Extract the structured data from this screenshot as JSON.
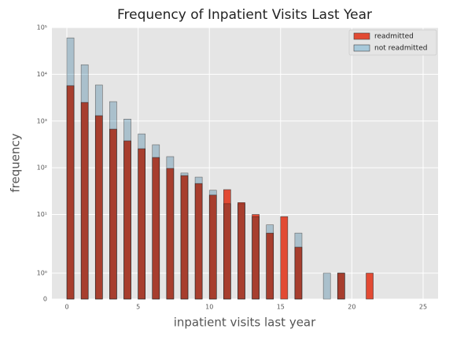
{
  "chart_data": {
    "type": "histogram",
    "title": "Frequency of Inpatient Visits Last Year",
    "x_label": "inpatient visits last year",
    "y_label": "frequency",
    "bins": [
      0,
      0.5,
      1,
      1.5,
      2,
      2.5,
      3,
      3.5,
      4,
      4.5,
      5,
      5.5,
      6,
      6.5,
      7,
      7.5,
      8,
      8.5,
      9,
      9.5,
      10,
      10.5,
      11,
      11.5,
      12,
      12.5,
      13,
      13.5,
      14,
      14.5,
      15,
      15.5,
      16,
      16.5,
      17,
      17.5,
      18,
      18.5,
      19,
      19.5,
      20,
      20.5,
      21,
      21.5
    ],
    "series": [
      {
        "name": "readmitted",
        "color": "#E24A33",
        "values": [
          5700,
          0,
          2500,
          0,
          1300,
          0,
          670,
          0,
          376,
          0,
          255,
          0,
          166,
          0,
          97,
          0,
          68,
          0,
          46,
          0,
          26,
          0,
          34,
          0,
          18,
          0,
          10,
          0,
          4,
          0,
          9,
          0,
          2,
          0,
          0,
          0,
          0,
          0,
          1,
          0,
          0,
          0,
          1
        ]
      },
      {
        "name": "not readmitted",
        "color": "#a7c9da",
        "values": [
          60000,
          0,
          16000,
          0,
          5900,
          0,
          2600,
          0,
          1100,
          0,
          530,
          0,
          310,
          0,
          173,
          0,
          77,
          0,
          63,
          0,
          33,
          0,
          17,
          0,
          17,
          0,
          9,
          0,
          6,
          0,
          0,
          0,
          4,
          0,
          0,
          0,
          1,
          0,
          1,
          0,
          0,
          0,
          0
        ]
      }
    ],
    "xlim": [
      -1.05,
      26.05
    ],
    "xticks": [
      0,
      5,
      10,
      15,
      20,
      25
    ],
    "ylim": [
      0,
      100000
    ],
    "yscale": "symlog",
    "linthresh": 2,
    "yticks": [
      0,
      {
        "value": 1,
        "label": "10⁰"
      },
      {
        "value": 10,
        "label": "10¹"
      },
      {
        "value": 100,
        "label": "10²"
      },
      {
        "value": 1000,
        "label": "10³"
      },
      {
        "value": 10000,
        "label": "10⁴"
      },
      {
        "value": 100000,
        "label": "10⁵"
      }
    ],
    "grid": true,
    "legend": "upper right"
  }
}
